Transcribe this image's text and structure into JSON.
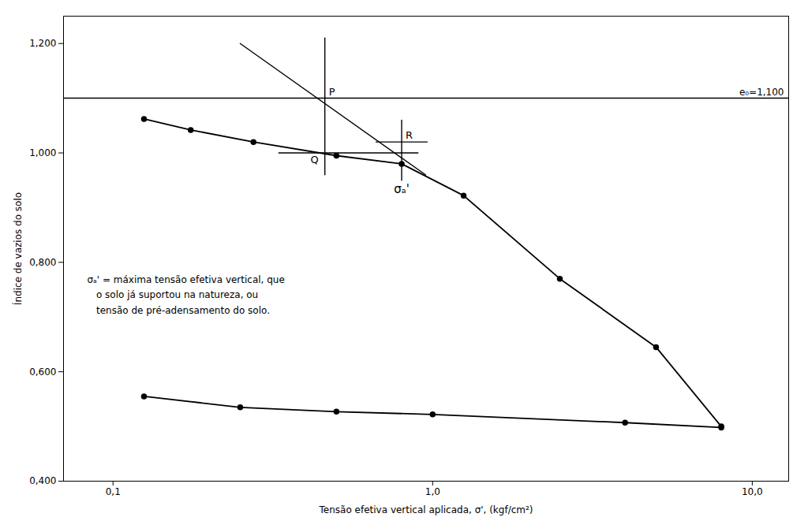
{
  "chart_data": {
    "type": "line",
    "xlabel": "Tensão efetiva vertical aplicada, σ', (kgf/cm²)",
    "ylabel": "Índice de vazios do solo",
    "log": "x",
    "xlim": [
      0.07,
      13.0
    ],
    "ylim": [
      0.4,
      1.25
    ],
    "xticks": [
      {
        "value": 0.1,
        "label": "0,1"
      },
      {
        "value": 1.0,
        "label": "1,0"
      },
      {
        "value": 10.0,
        "label": "10,0"
      }
    ],
    "yticks": [
      {
        "value": 0.4,
        "label": "0,400"
      },
      {
        "value": 0.6,
        "label": "0,600"
      },
      {
        "value": 0.8,
        "label": "0,800"
      },
      {
        "value": 1.0,
        "label": "1,000"
      },
      {
        "value": 1.2,
        "label": "1,200"
      }
    ],
    "series": [
      {
        "x": [
          0.125,
          0.175,
          0.275,
          0.5,
          0.8,
          1.25,
          2.5,
          5.0,
          8.0
        ],
        "values": [
          1.062,
          1.042,
          1.02,
          0.995,
          0.98,
          0.922,
          0.77,
          0.645,
          0.5
        ],
        "color": "#000000",
        "marker": "circle",
        "line_style": "solid"
      },
      {
        "x": [
          0.125,
          0.25,
          0.5,
          1.0,
          4.0,
          8.0
        ],
        "values": [
          0.555,
          0.535,
          0.527,
          0.522,
          0.507,
          0.498
        ],
        "color": "#000000",
        "marker": "circle",
        "line_style": "solid"
      }
    ],
    "reference_lines": [
      {
        "y": 1.1,
        "label": "e₀=1,100",
        "color": "#000000"
      }
    ],
    "segments": [
      {
        "x": [
          0.25,
          0.95
        ],
        "values": [
          1.2,
          0.96
        ],
        "color": "#000000"
      },
      {
        "x": [
          0.46,
          0.46
        ],
        "values": [
          0.96,
          1.21
        ],
        "color": "#000000"
      },
      {
        "x": [
          0.33,
          0.9
        ],
        "values": [
          1.0,
          1.0
        ],
        "color": "#000000"
      },
      {
        "x": [
          0.8,
          0.8
        ],
        "values": [
          0.95,
          1.06
        ],
        "color": "#000000"
      },
      {
        "x": [
          0.665411,
          0.961811
        ],
        "values": [
          1.02,
          1.02
        ],
        "color": "#000000"
      }
    ],
    "point_labels": [
      {
        "x": 0.46,
        "y": 1.1,
        "label": "P"
      },
      {
        "x": 0.46,
        "y": 1.0,
        "label": "Q"
      },
      {
        "x": 0.8,
        "y": 1.02,
        "label": "R"
      }
    ],
    "axis_marker_label": {
      "x": 0.8,
      "label": "σₐ'"
    },
    "annotation": "σₐ' = máxima tensão efetiva vertical, que\n   o solo já suportou na natureza, ou\n   tensão de pré-adensamento do solo."
  }
}
